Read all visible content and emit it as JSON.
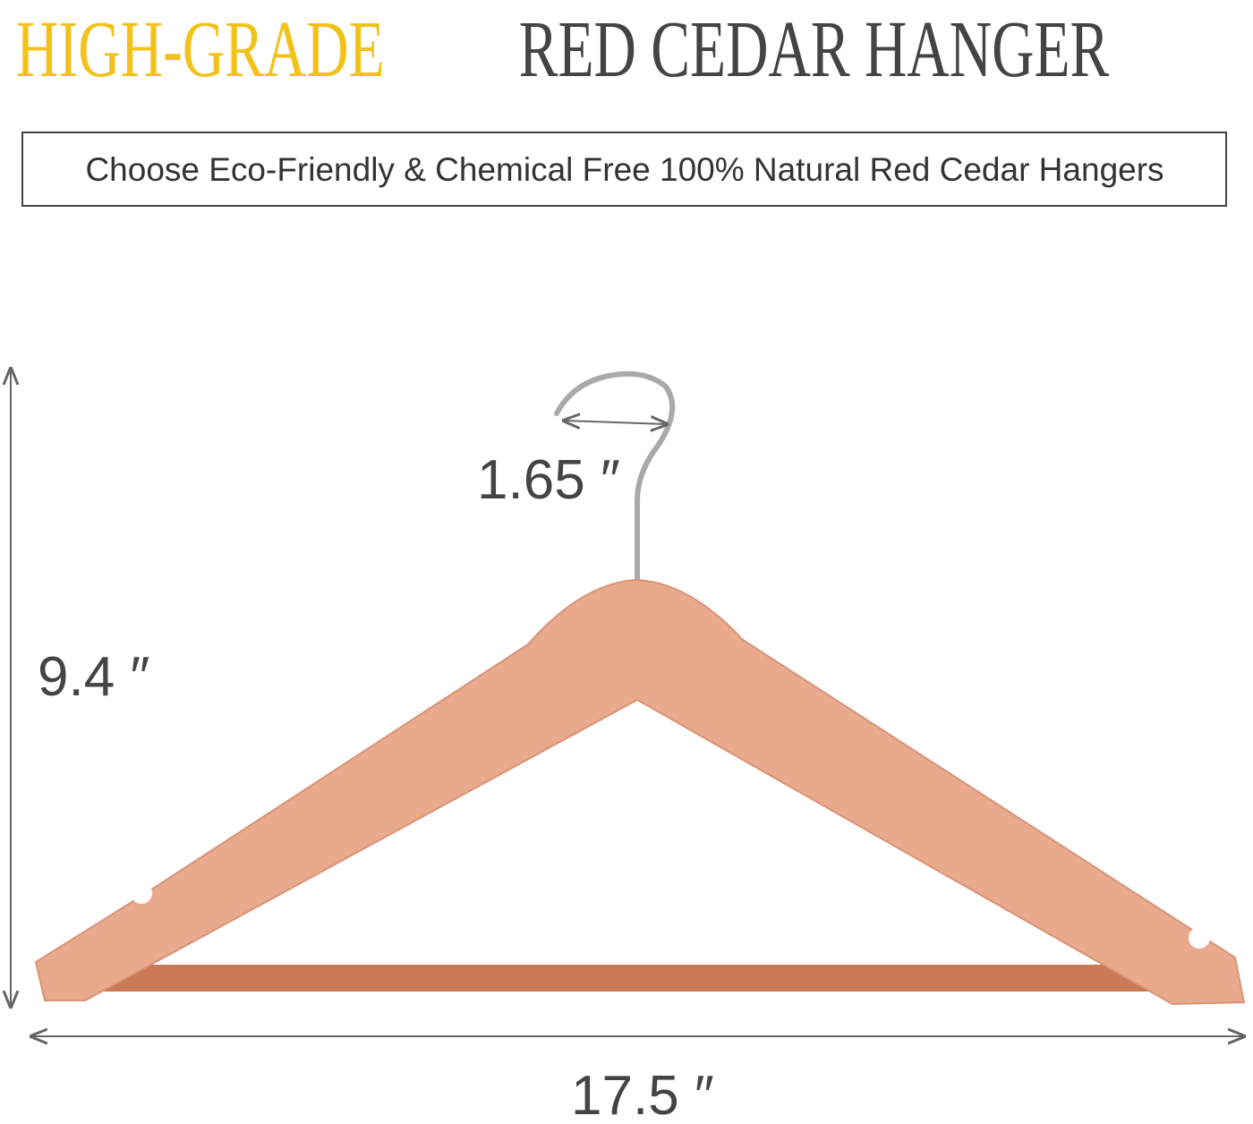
{
  "header": {
    "title_highlight": "HIGH-GRADE",
    "title_rest": "RED CEDAR HANGER",
    "subtitle": "Choose Eco-Friendly & Chemical Free 100% Natural Red Cedar Hangers"
  },
  "dimensions": {
    "hook": "1.65 ″",
    "height": "9.4 ″",
    "width": "17.5 ″"
  }
}
